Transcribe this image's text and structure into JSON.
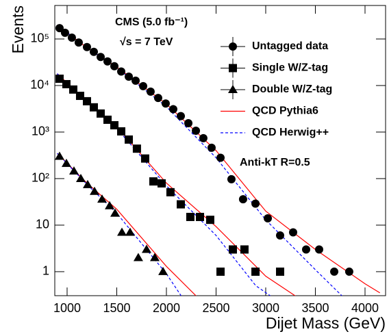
{
  "chart_data": {
    "type": "scatter",
    "log_y": true,
    "x_label": "Dijet Mass (GeV)",
    "y_label": "Events",
    "xlim": [
      876,
      4207
    ],
    "ylim": [
      0.305,
      525000
    ],
    "xticks": [
      1000,
      1500,
      2000,
      2500,
      3000,
      3500,
      4000
    ],
    "yticks": [
      1,
      10,
      {
        "value": 100,
        "label": "10²"
      },
      {
        "value": 1000,
        "label": "10³"
      },
      {
        "value": 10000,
        "label": "10⁴"
      },
      {
        "value": 100000,
        "label": "10⁵"
      }
    ],
    "annotations": [
      "CMS (5.0 fb⁻¹)",
      "√s = 7 TeV",
      "Anti-kT R=0.5"
    ],
    "series": [
      {
        "name": "Untagged data",
        "color": "#000000",
        "marker": "circle",
        "x": [
          924,
          979,
          1048,
          1117,
          1200,
          1269,
          1338,
          1407,
          1476,
          1545,
          1621,
          1690,
          1766,
          1841,
          1917,
          1993,
          2069,
          2145,
          2221,
          2297,
          2372,
          2455,
          2545,
          2655,
          2772,
          2897,
          3021,
          3145,
          3276,
          3407,
          3538,
          3690,
          3841
        ],
        "values": [
          171000,
          136000,
          107000,
          84000,
          67000,
          53000,
          41000,
          33000,
          26000,
          20000,
          15500,
          12700,
          9700,
          7400,
          5400,
          4100,
          3100,
          2200,
          1550,
          1070,
          740,
          460,
          280,
          97,
          36,
          29,
          14,
          6,
          7,
          3,
          3,
          1,
          1
        ]
      },
      {
        "name": "Single W/Z-tag",
        "color": "#000000",
        "marker": "square",
        "x": [
          924,
          993,
          1062,
          1131,
          1200,
          1269,
          1338,
          1407,
          1476,
          1545,
          1621,
          1703,
          1786,
          1869,
          1952,
          2041,
          2145,
          2241,
          2338,
          2441,
          2545,
          2669,
          2786,
          2897,
          3145
        ],
        "values": [
          14000,
          10700,
          8200,
          6000,
          4600,
          3400,
          2500,
          1840,
          1400,
          1035,
          690,
          440,
          270,
          87,
          79,
          51,
          28,
          15,
          15,
          13,
          1,
          3,
          3,
          1,
          1
        ]
      },
      {
        "name": "Double W/Z-tag",
        "color": "#000000",
        "marker": "triangle",
        "x": [
          924,
          993,
          1069,
          1138,
          1207,
          1276,
          1352,
          1428,
          1483,
          1552,
          1634,
          1717,
          1800,
          1883,
          1966
        ],
        "values": [
          300,
          211,
          145,
          100,
          74,
          53,
          36,
          26,
          18,
          7,
          7,
          2,
          3,
          2,
          1
        ]
      }
    ],
    "curves": [
      {
        "name": "QCD Pythia6",
        "color": "#ff0000",
        "dash": false,
        "lines": [
          {
            "x": [
              900,
              1200,
              1500,
              2000,
              2500,
              3000,
              3500,
              4000,
              4150
            ],
            "values": [
              200000,
              65000,
              25000,
              4000,
              400,
              20,
              3,
              0.55,
              0.35
            ]
          },
          {
            "x": [
              900,
              1200,
              1500,
              2000,
              2500,
              3000,
              3300
            ],
            "values": [
              18000,
              4600,
              1300,
              80,
              9.3,
              0.8,
              0.3
            ]
          },
          {
            "x": [
              900,
              1200,
              1500,
              2000,
              2300
            ],
            "values": [
              350,
              80,
              22,
              1.3,
              0.3
            ]
          }
        ]
      },
      {
        "name": "QCD Herwig++",
        "color": "#0000ff",
        "dash": true,
        "lines": [
          {
            "x": [
              900,
              1200,
              1500,
              2000,
              2500,
              3000,
              3500,
              3770
            ],
            "values": [
              200000,
              65000,
              24000,
              3500,
              280,
              13,
              1.1,
              0.3
            ]
          },
          {
            "x": [
              900,
              1200,
              1500,
              2000,
              2500,
              2900,
              3050
            ],
            "values": [
              18000,
              4500,
              1200,
              70,
              6,
              0.5,
              0.3
            ]
          },
          {
            "x": [
              900,
              1200,
              1500,
              2000,
              2150
            ],
            "values": [
              350,
              75,
              18,
              0.9,
              0.3
            ]
          }
        ]
      }
    ]
  }
}
